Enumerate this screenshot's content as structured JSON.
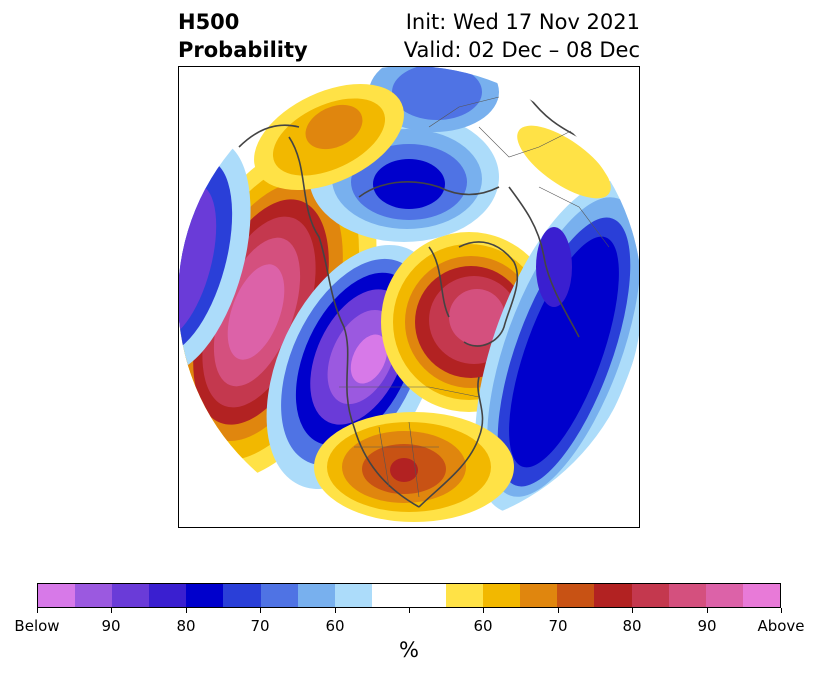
{
  "title": {
    "left_line1": "H500",
    "left_line2": "Probability",
    "right_line1": "Init: Wed 17 Nov 2021",
    "right_line2": "Valid: 02 Dec – 08 Dec"
  },
  "colorbar": {
    "unit": "%",
    "colors": [
      "#d779e8",
      "#9b59e0",
      "#6a3bd8",
      "#3a1fd0",
      "#0000cc",
      "#2a3fd8",
      "#4f73e4",
      "#78b0ee",
      "#acdcfa",
      "#ffffff",
      "#ffffff",
      "#ffe246",
      "#f2b800",
      "#e0860e",
      "#c85214",
      "#b22222",
      "#c4384e",
      "#d4507e",
      "#dc62a8",
      "#e87ad8"
    ],
    "tick_labels": [
      "Below",
      "90",
      "80",
      "70",
      "60",
      "60",
      "70",
      "80",
      "90",
      "Above"
    ]
  },
  "map": {
    "legend_meaning": {
      "blue_purple": "Below normal",
      "yellow_red_pink": "Above normal"
    }
  }
}
